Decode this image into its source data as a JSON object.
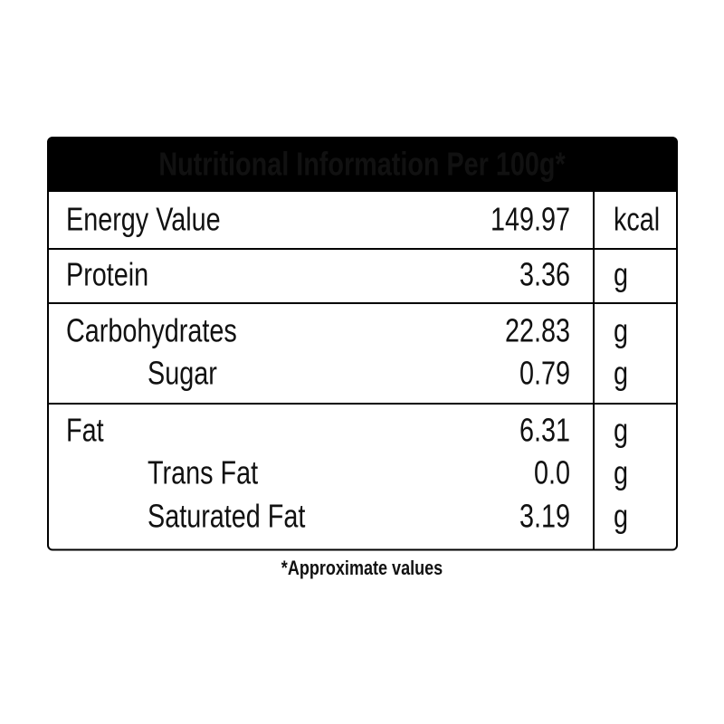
{
  "header": {
    "title": "Nutritional Information Per 100g*"
  },
  "table": {
    "rows": [
      [
        "Energy Value",
        "149.97",
        "kcal"
      ],
      [
        "Protein",
        "3.36",
        "g"
      ],
      [
        "Carbohydrates",
        "22.83",
        "g"
      ],
      [
        "Sugar",
        "0.79",
        "g"
      ],
      [
        "Fat",
        "6.31",
        "g"
      ],
      [
        "Trans Fat",
        "0.0",
        "g"
      ],
      [
        "Saturated Fat",
        "3.19",
        "g"
      ]
    ]
  },
  "footnote": "*Approximate values"
}
